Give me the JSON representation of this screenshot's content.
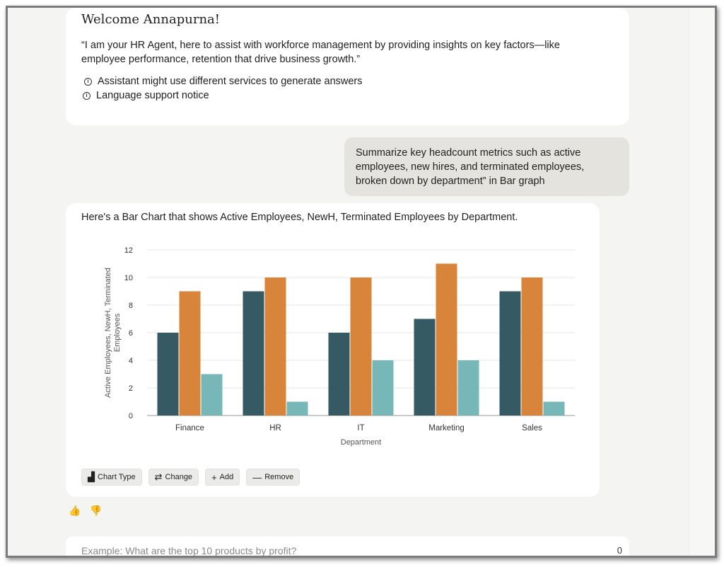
{
  "welcome": {
    "title": "Welcome Annapurna!",
    "quote_line1": "“I am your HR Agent, here to assist with workforce management by providing insights on key factors—like",
    "quote_line2": "employee performance, retention that drive business growth.”",
    "notices": [
      "Assistant might use different services to generate answers",
      "Language support notice"
    ]
  },
  "user_message": {
    "line1": "Summarize key headcount metrics such as active",
    "line2": "employees, new hires, and terminated employees,",
    "line3": "broken down by department” in Bar graph"
  },
  "response": {
    "lead": "Here's a Bar Chart that shows Active Employees, NewH, Terminated Employees by Department."
  },
  "chart_data": {
    "type": "bar",
    "categories": [
      "Finance",
      "HR",
      "IT",
      "Marketing",
      "Sales"
    ],
    "series": [
      {
        "name": "Active Employees",
        "values": [
          6,
          9,
          6,
          7,
          9
        ],
        "color": "#355a63"
      },
      {
        "name": "NewH",
        "values": [
          9,
          10,
          10,
          11,
          10
        ],
        "color": "#d8843a"
      },
      {
        "name": "Terminated Employees",
        "values": [
          3,
          1,
          4,
          4,
          1
        ],
        "color": "#78b7b8"
      }
    ],
    "ylim": [
      0,
      12
    ],
    "yticks": [
      "0",
      "2",
      "4",
      "6",
      "8",
      "10",
      "12"
    ],
    "ytick_values": [
      0,
      2,
      4,
      6,
      8,
      10,
      12
    ],
    "xlabel": "Department",
    "ylabel_line1": "Active Employees, NewH, Terminated",
    "ylabel_line2": "Employees",
    "grid": true
  },
  "actions": [
    {
      "label": "Chart Type",
      "icon": "chart-type-icon",
      "glyph": "▟"
    },
    {
      "label": "Change",
      "icon": "change-icon",
      "glyph": "⇄"
    },
    {
      "label": "Add",
      "icon": "add-icon",
      "glyph": "+"
    },
    {
      "label": "Remove",
      "icon": "remove-icon",
      "glyph": "—"
    }
  ],
  "feedback": {
    "like_glyph": "👍",
    "dislike_glyph": "👎"
  },
  "input": {
    "placeholder": "Example: What are the top 10 products by profit?",
    "count": "0"
  }
}
